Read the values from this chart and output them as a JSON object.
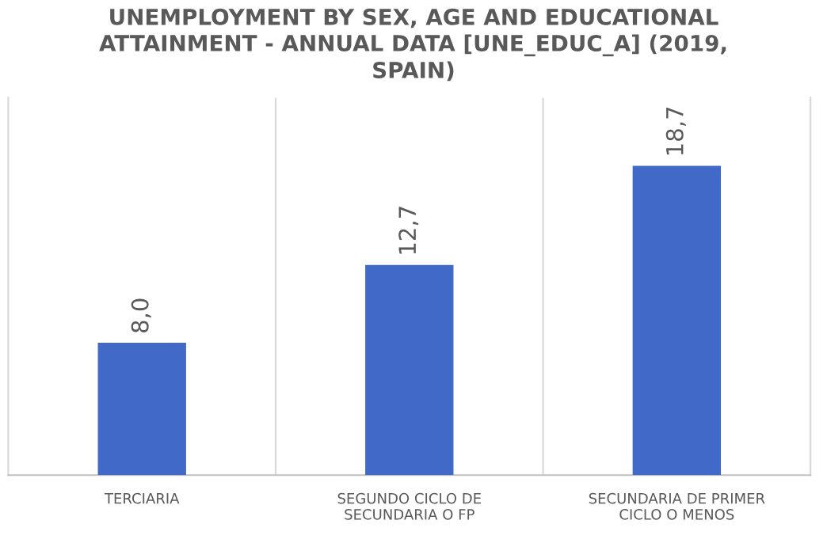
{
  "chart_data": {
    "type": "bar",
    "title": "UNEMPLOYMENT BY SEX, AGE AND EDUCATIONAL\nATTAINMENT - ANNUAL DATA [UNE_EDUC_A] (2019,\nSPAIN)",
    "categories": [
      "TERCIARIA",
      "SEGUNDO CICLO DE\nSECUNDARIA O FP",
      "SECUNDARIA DE PRIMER\nCICLO O MENOS"
    ],
    "values": [
      8.0,
      12.7,
      18.7
    ],
    "value_labels": [
      "8,0",
      "12,7",
      "18,7"
    ],
    "color": "#4169c8",
    "grid": "x",
    "legend": false
  }
}
